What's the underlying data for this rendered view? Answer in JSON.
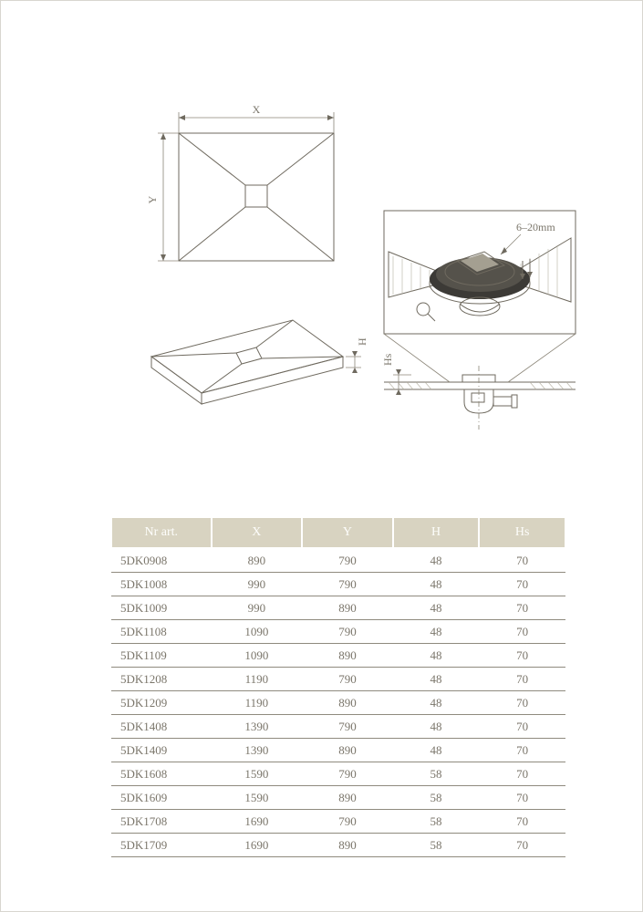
{
  "diagram_labels": {
    "x": "X",
    "y": "Y",
    "h": "H",
    "hs": "Hs",
    "detail_range": "6–20mm"
  },
  "table": {
    "header_bg": "#d8d3c1",
    "header_color": "#fdfdfb",
    "row_border": "#8f8a7e",
    "text_color": "#7b766b",
    "columns": [
      "Nr art.",
      "X",
      "Y",
      "H",
      "Hs"
    ],
    "rows": [
      [
        "5DK0908",
        "890",
        "790",
        "48",
        "70"
      ],
      [
        "5DK1008",
        "990",
        "790",
        "48",
        "70"
      ],
      [
        "5DK1009",
        "990",
        "890",
        "48",
        "70"
      ],
      [
        "5DK1108",
        "1090",
        "790",
        "48",
        "70"
      ],
      [
        "5DK1109",
        "1090",
        "890",
        "48",
        "70"
      ],
      [
        "5DK1208",
        "1190",
        "790",
        "48",
        "70"
      ],
      [
        "5DK1209",
        "1190",
        "890",
        "48",
        "70"
      ],
      [
        "5DK1408",
        "1390",
        "790",
        "48",
        "70"
      ],
      [
        "5DK1409",
        "1390",
        "890",
        "48",
        "70"
      ],
      [
        "5DK1608",
        "1590",
        "790",
        "58",
        "70"
      ],
      [
        "5DK1609",
        "1590",
        "890",
        "58",
        "70"
      ],
      [
        "5DK1708",
        "1690",
        "790",
        "58",
        "70"
      ],
      [
        "5DK1709",
        "1690",
        "890",
        "58",
        "70"
      ]
    ]
  }
}
